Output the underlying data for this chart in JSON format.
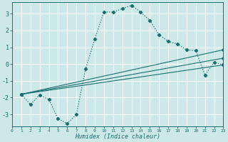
{
  "xlabel": "Humidex (Indice chaleur)",
  "background_color": "#cce8e8",
  "grid_color": "#ffffff",
  "line_color": "#1a6e6e",
  "xlim": [
    0,
    23
  ],
  "ylim": [
    -3.7,
    3.7
  ],
  "yticks": [
    -3,
    -2,
    -1,
    0,
    1,
    2,
    3
  ],
  "xticks": [
    0,
    1,
    2,
    3,
    4,
    5,
    6,
    7,
    8,
    9,
    10,
    11,
    12,
    13,
    14,
    15,
    16,
    17,
    18,
    19,
    20,
    21,
    22,
    23
  ],
  "main_line": {
    "x": [
      1,
      2,
      3,
      4,
      5,
      6,
      7,
      8,
      9,
      10,
      11,
      12,
      13,
      14,
      15,
      16,
      17,
      18,
      19,
      20,
      21,
      22,
      23
    ],
    "y": [
      -1.8,
      -2.4,
      -1.85,
      -2.1,
      -3.25,
      -3.55,
      -3.0,
      -0.3,
      1.5,
      3.1,
      3.1,
      3.3,
      3.5,
      3.1,
      2.6,
      1.75,
      1.35,
      1.2,
      0.85,
      0.8,
      -0.65,
      0.1,
      -0.05
    ]
  },
  "trend_lines": [
    {
      "x": [
        1,
        23
      ],
      "y": [
        -1.8,
        -0.05
      ]
    },
    {
      "x": [
        1,
        23
      ],
      "y": [
        -1.8,
        0.35
      ]
    },
    {
      "x": [
        1,
        23
      ],
      "y": [
        -1.8,
        0.85
      ]
    }
  ]
}
